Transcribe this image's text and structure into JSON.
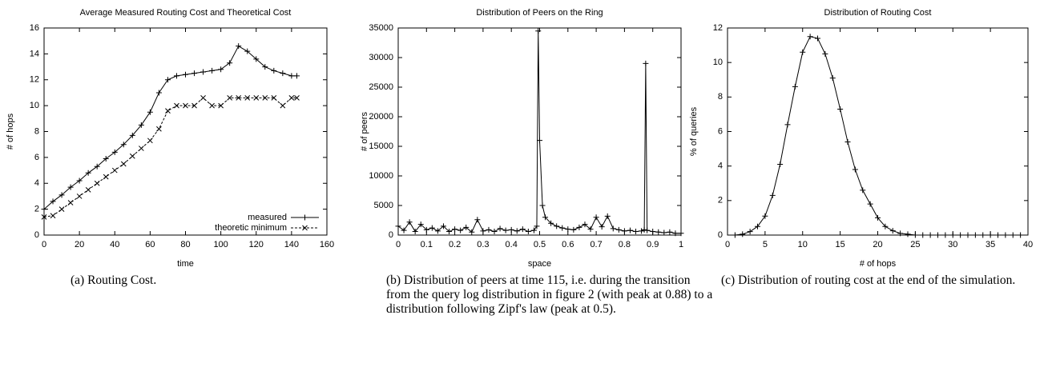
{
  "chart_data": [
    {
      "type": "line",
      "title": "Average Measured Routing Cost and Theoretical Cost",
      "xlabel": "time",
      "ylabel": "# of hops",
      "xlim": [
        0,
        160
      ],
      "ylim": [
        0,
        16
      ],
      "xticks": [
        0,
        20,
        40,
        60,
        80,
        100,
        120,
        140,
        160
      ],
      "yticks": [
        0,
        2,
        4,
        6,
        8,
        10,
        12,
        14,
        16
      ],
      "legend": "lower right",
      "x": [
        0,
        5,
        10,
        15,
        20,
        25,
        30,
        35,
        40,
        45,
        50,
        55,
        60,
        65,
        70,
        75,
        80,
        85,
        90,
        95,
        100,
        105,
        110,
        115,
        120,
        125,
        130,
        135,
        140,
        143
      ],
      "series": [
        {
          "name": "measured",
          "color": "#000000",
          "marker": "+",
          "dash": "solid",
          "values": [
            2.0,
            2.6,
            3.1,
            3.7,
            4.2,
            4.8,
            5.3,
            5.9,
            6.4,
            7.0,
            7.7,
            8.5,
            9.5,
            11.0,
            12.0,
            12.3,
            12.4,
            12.5,
            12.6,
            12.7,
            12.8,
            13.3,
            14.6,
            14.2,
            13.6,
            13.0,
            12.7,
            12.5,
            12.3,
            12.3
          ]
        },
        {
          "name": "theoretic minimum",
          "color": "#000000",
          "marker": "x",
          "dash": "dashed",
          "values": [
            1.4,
            1.5,
            2.0,
            2.5,
            3.0,
            3.5,
            4.0,
            4.5,
            5.0,
            5.5,
            6.1,
            6.7,
            7.3,
            8.2,
            9.6,
            10.0,
            10.0,
            10.0,
            10.6,
            10.0,
            10.0,
            10.6,
            10.6,
            10.6,
            10.6,
            10.6,
            10.6,
            10.0,
            10.6,
            10.6
          ]
        }
      ]
    },
    {
      "type": "line",
      "title": "Distribution of Peers on the Ring",
      "xlabel": "space",
      "ylabel": "# of peers",
      "xlim": [
        0,
        1
      ],
      "ylim": [
        0,
        35000
      ],
      "xticks": [
        0,
        0.1,
        0.2,
        0.3,
        0.4,
        0.5,
        0.6,
        0.7,
        0.8,
        0.9,
        1
      ],
      "yticks": [
        0,
        5000,
        10000,
        15000,
        20000,
        25000,
        30000,
        35000
      ],
      "x": [
        0,
        0.02,
        0.04,
        0.06,
        0.08,
        0.1,
        0.12,
        0.14,
        0.16,
        0.18,
        0.2,
        0.22,
        0.24,
        0.26,
        0.28,
        0.3,
        0.32,
        0.34,
        0.36,
        0.38,
        0.4,
        0.42,
        0.44,
        0.46,
        0.48,
        0.49,
        0.495,
        0.5,
        0.51,
        0.52,
        0.54,
        0.56,
        0.58,
        0.6,
        0.62,
        0.64,
        0.66,
        0.68,
        0.7,
        0.72,
        0.74,
        0.76,
        0.78,
        0.8,
        0.82,
        0.84,
        0.86,
        0.87,
        0.875,
        0.88,
        0.9,
        0.92,
        0.94,
        0.96,
        0.98,
        1.0
      ],
      "series": [
        {
          "color": "#000000",
          "marker": "+",
          "dash": "solid",
          "values": [
            1500,
            800,
            2200,
            600,
            1800,
            900,
            1200,
            700,
            1500,
            600,
            1000,
            800,
            1300,
            500,
            2600,
            700,
            900,
            600,
            1100,
            800,
            900,
            700,
            1000,
            600,
            800,
            1500,
            34500,
            16000,
            5000,
            3000,
            2000,
            1500,
            1200,
            1000,
            900,
            1300,
            1800,
            1000,
            3000,
            1400,
            3200,
            1100,
            900,
            700,
            800,
            600,
            700,
            900,
            29000,
            800,
            600,
            500,
            400,
            500,
            300,
            300
          ]
        }
      ]
    },
    {
      "type": "line",
      "title": "Distribution of Routing Cost",
      "xlabel": "# of hops",
      "ylabel": "% of queries",
      "xlim": [
        0,
        40
      ],
      "ylim": [
        0,
        12
      ],
      "xticks": [
        0,
        5,
        10,
        15,
        20,
        25,
        30,
        35,
        40
      ],
      "yticks": [
        0,
        2,
        4,
        6,
        8,
        10,
        12
      ],
      "x": [
        1,
        2,
        3,
        4,
        5,
        6,
        7,
        8,
        9,
        10,
        11,
        12,
        13,
        14,
        15,
        16,
        17,
        18,
        19,
        20,
        21,
        22,
        23,
        24,
        25,
        26,
        27,
        28,
        29,
        30,
        31,
        32,
        33,
        34,
        35,
        36,
        37,
        38,
        39
      ],
      "series": [
        {
          "color": "#000000",
          "marker": "+",
          "dash": "solid",
          "values": [
            0,
            0.05,
            0.2,
            0.5,
            1.1,
            2.3,
            4.1,
            6.4,
            8.6,
            10.6,
            11.5,
            11.4,
            10.5,
            9.1,
            7.3,
            5.4,
            3.8,
            2.6,
            1.8,
            1.0,
            0.5,
            0.25,
            0.1,
            0.05,
            0,
            0,
            0,
            0,
            0,
            0,
            0,
            0,
            0,
            0,
            0,
            0,
            0,
            0,
            0
          ]
        }
      ]
    }
  ],
  "captions": [
    "(a) Routing Cost.",
    "(b) Distribution of peers at time 115, i.e. during the transition from the query log distribution in figure 2 (with peak at 0.88) to a distribution following Zipf's law (peak at 0.5).",
    "(c) Distribution of routing cost at the end of the simulation."
  ]
}
